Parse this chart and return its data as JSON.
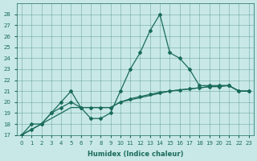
{
  "bg_color": "#c8e8e8",
  "line_color": "#1a6b5a",
  "xlim": [
    -0.5,
    23.5
  ],
  "ylim": [
    17,
    29
  ],
  "yticks": [
    17,
    18,
    19,
    20,
    21,
    22,
    23,
    24,
    25,
    26,
    27,
    28
  ],
  "xticks": [
    0,
    1,
    2,
    3,
    4,
    5,
    6,
    7,
    8,
    9,
    10,
    11,
    12,
    13,
    14,
    15,
    16,
    17,
    18,
    19,
    20,
    21,
    22,
    23
  ],
  "xlabel": "Humidex (Indice chaleur)",
  "series1_x": [
    0,
    1,
    2,
    3,
    4,
    5,
    6,
    7,
    8,
    9,
    10,
    11,
    12,
    13,
    14,
    15,
    16,
    17,
    18,
    19,
    20,
    21,
    22,
    23
  ],
  "series1_y": [
    17.0,
    18.0,
    18.0,
    19.0,
    20.0,
    21.0,
    19.5,
    18.5,
    18.5,
    19.0,
    21.0,
    23.0,
    24.5,
    26.5,
    28.0,
    24.5,
    24.0,
    23.0,
    21.5,
    21.5,
    21.5,
    21.5,
    21.0,
    21.0
  ],
  "series2_x": [
    0,
    1,
    2,
    3,
    4,
    5,
    6,
    7,
    8,
    9,
    10,
    11,
    12,
    13,
    14,
    15,
    16,
    17,
    18,
    19,
    20,
    21,
    22,
    23
  ],
  "series2_y": [
    17.0,
    17.5,
    18.0,
    19.0,
    19.5,
    20.0,
    19.5,
    19.5,
    19.5,
    19.5,
    20.0,
    20.3,
    20.5,
    20.7,
    20.9,
    21.0,
    21.1,
    21.2,
    21.3,
    21.4,
    21.4,
    21.5,
    21.0,
    21.0
  ],
  "series3_x": [
    0,
    1,
    2,
    3,
    4,
    5,
    6,
    7,
    8,
    9,
    10,
    11,
    12,
    13,
    14,
    15,
    16,
    17,
    18,
    19,
    20,
    21,
    22,
    23
  ],
  "series3_y": [
    17.0,
    17.5,
    18.0,
    18.5,
    19.0,
    19.5,
    19.5,
    19.5,
    19.5,
    19.5,
    20.0,
    20.2,
    20.4,
    20.6,
    20.8,
    21.0,
    21.1,
    21.2,
    21.3,
    21.4,
    21.5,
    21.5,
    21.0,
    21.0
  ]
}
